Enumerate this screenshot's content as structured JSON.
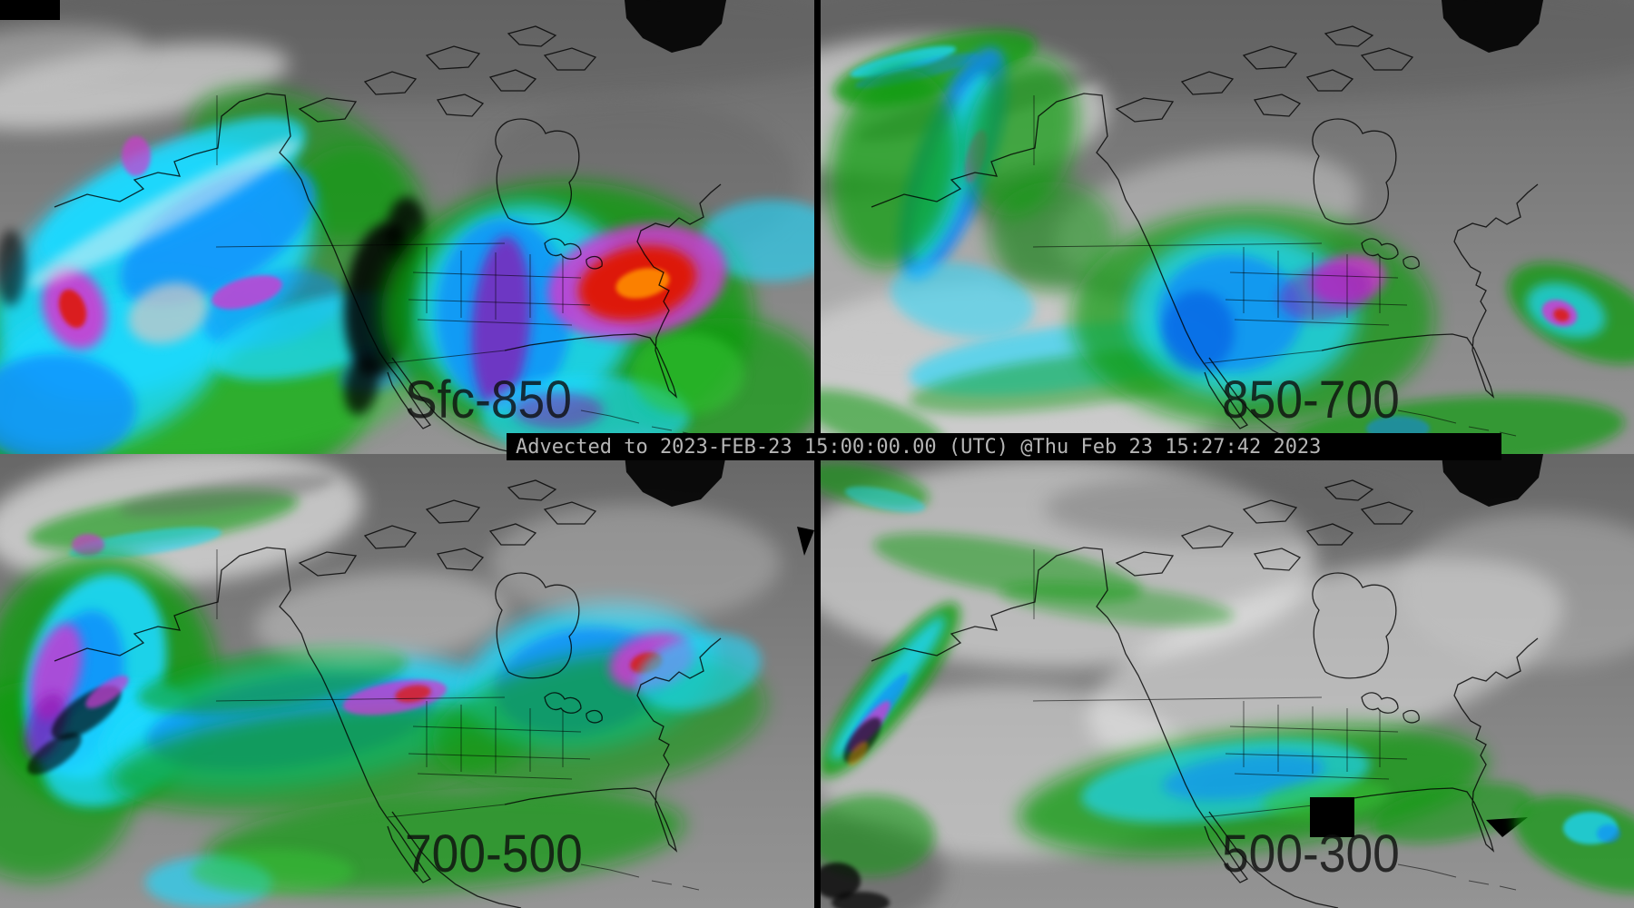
{
  "banner": {
    "text": "Advected to 2023-FEB-23 15:00:00.00 (UTC) @Thu Feb 23 15:27:42 2023"
  },
  "panels": [
    {
      "id": "sfc-850",
      "label": "Sfc-850",
      "position": "top-left"
    },
    {
      "id": "850-700",
      "label": "850-700",
      "position": "top-right"
    },
    {
      "id": "700-500",
      "label": "700-500",
      "position": "bottom-left"
    },
    {
      "id": "500-300",
      "label": "500-300",
      "position": "bottom-right"
    }
  ],
  "palette": {
    "gray_base": "#7b7b7b",
    "gray_dark": "#5e5e5e",
    "gray_light": "#c8c8c8",
    "white": "#f1f1f1",
    "black": "#000000",
    "green": "#0f9b0f",
    "green_bright": "#35c435",
    "cyan": "#1ed9ff",
    "blue": "#0a86ff",
    "blue_deep": "#0040dd",
    "magenta": "#cf3ad1",
    "purple": "#8c17b3",
    "red": "#e01800",
    "orange": "#ff8c00",
    "banner_bg": "#000000",
    "banner_fg": "#b5b5b5",
    "label_color": "#0d0d0d"
  }
}
